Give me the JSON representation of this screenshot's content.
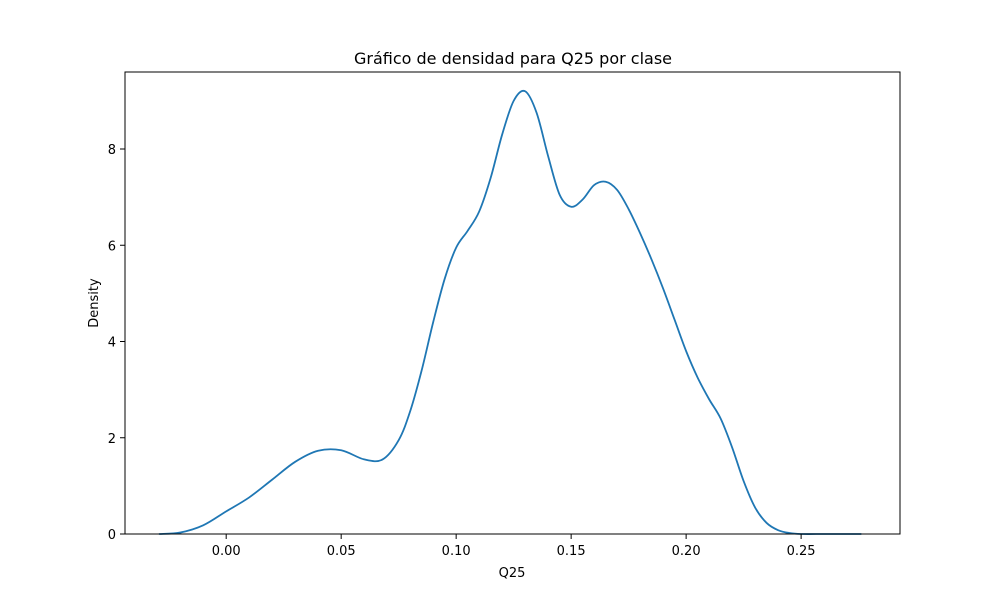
{
  "chart_data": {
    "type": "line",
    "title": "Gráfico de densidad para Q25 por clase",
    "xlabel": "Q25",
    "ylabel": "Density",
    "xlim": [
      -0.044,
      0.293
    ],
    "ylim": [
      0,
      9.6
    ],
    "xticks": [
      0.0,
      0.05,
      0.1,
      0.15,
      0.2,
      0.25
    ],
    "xtick_labels": [
      "0.00",
      "0.05",
      "0.10",
      "0.15",
      "0.20",
      "0.25"
    ],
    "yticks": [
      0,
      2,
      4,
      6,
      8
    ],
    "ytick_labels": [
      "0",
      "2",
      "4",
      "6",
      "8"
    ],
    "grid": false,
    "series": [
      {
        "color": "#1f77b4",
        "x": [
          -0.029,
          -0.02,
          -0.01,
          0.0,
          0.01,
          0.02,
          0.03,
          0.04,
          0.05,
          0.06,
          0.068,
          0.075,
          0.08,
          0.085,
          0.09,
          0.095,
          0.1,
          0.105,
          0.11,
          0.115,
          0.12,
          0.125,
          0.13,
          0.135,
          0.14,
          0.145,
          0.15,
          0.155,
          0.16,
          0.165,
          0.17,
          0.175,
          0.18,
          0.185,
          0.19,
          0.195,
          0.2,
          0.205,
          0.21,
          0.215,
          0.22,
          0.225,
          0.23,
          0.235,
          0.24,
          0.245,
          0.25,
          0.26,
          0.27,
          0.276
        ],
        "y": [
          0.0,
          0.03,
          0.18,
          0.47,
          0.76,
          1.13,
          1.5,
          1.73,
          1.74,
          1.55,
          1.55,
          1.95,
          2.55,
          3.4,
          4.4,
          5.3,
          5.95,
          6.3,
          6.7,
          7.4,
          8.3,
          9.0,
          9.2,
          8.75,
          7.85,
          7.05,
          6.8,
          6.95,
          7.25,
          7.32,
          7.15,
          6.75,
          6.25,
          5.7,
          5.1,
          4.45,
          3.8,
          3.25,
          2.8,
          2.4,
          1.8,
          1.1,
          0.55,
          0.23,
          0.08,
          0.02,
          0.0,
          0.0,
          0.0,
          0.0
        ]
      }
    ]
  }
}
